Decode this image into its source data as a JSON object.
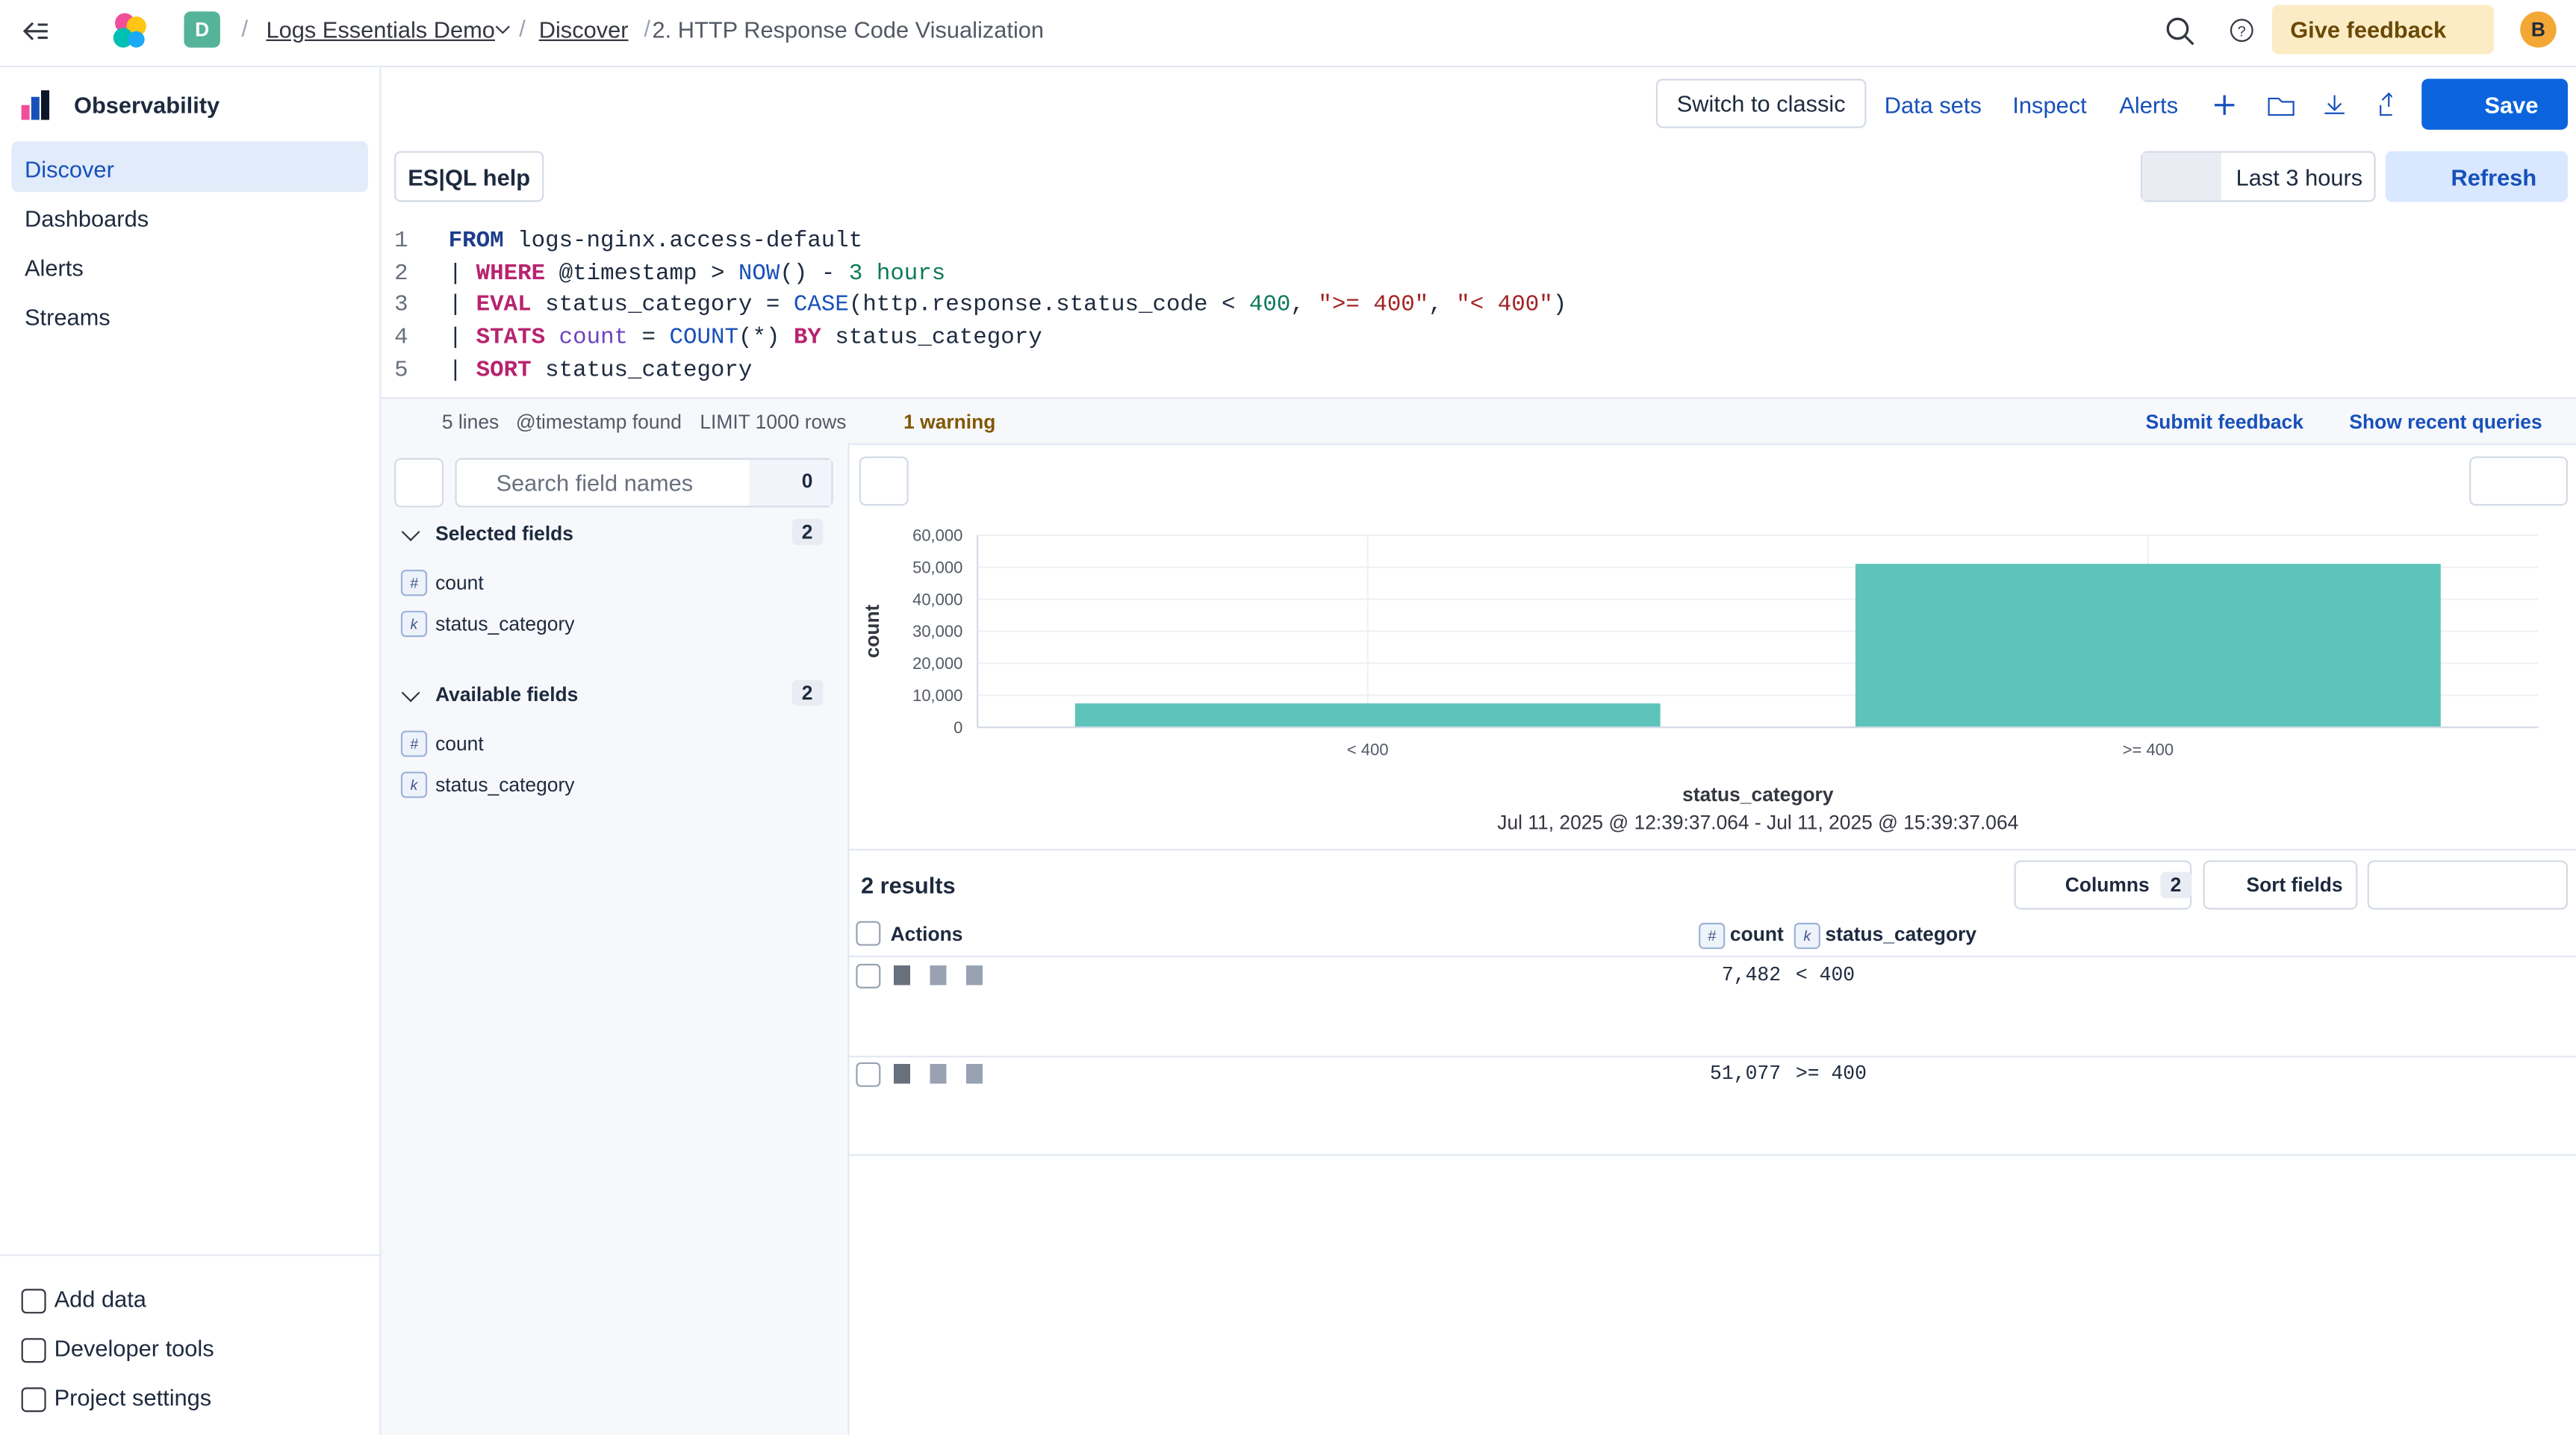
{
  "header": {
    "space_initial": "D",
    "breadcrumbs": [
      "Logs Essentials Demo",
      "Discover",
      "2. HTTP Response Code Visualization"
    ],
    "give_feedback": "Give feedback",
    "user_initial": "B"
  },
  "sidebar": {
    "title": "Observability",
    "nav": [
      "Discover",
      "Dashboards",
      "Alerts",
      "Streams"
    ],
    "footer": [
      "Add data",
      "Developer tools",
      "Project settings"
    ]
  },
  "toolbar": {
    "buttons": [
      "Switch to classic",
      "Data sets",
      "Inspect",
      "Alerts"
    ],
    "save": "Save"
  },
  "query_bar": {
    "help": "ES|QL help",
    "time_range": "Last 3 hours",
    "refresh": "Refresh"
  },
  "editor": {
    "lines": [
      {
        "number": "1",
        "tokens": [
          {
            "text": "FROM",
            "kind": "source"
          },
          {
            "text": " logs-nginx.access-default",
            "kind": "plain"
          }
        ]
      },
      {
        "number": "2",
        "tokens": [
          {
            "text": "| ",
            "kind": "plain"
          },
          {
            "text": "WHERE",
            "kind": "command"
          },
          {
            "text": " @timestamp > ",
            "kind": "plain"
          },
          {
            "text": "NOW",
            "kind": "function"
          },
          {
            "text": "() - ",
            "kind": "plain"
          },
          {
            "text": "3 hours",
            "kind": "number"
          }
        ]
      },
      {
        "number": "3",
        "tokens": [
          {
            "text": "| ",
            "kind": "plain"
          },
          {
            "text": "EVAL",
            "kind": "command"
          },
          {
            "text": " status_category = ",
            "kind": "plain"
          },
          {
            "text": "CASE",
            "kind": "function"
          },
          {
            "text": "(http.response.status_code < ",
            "kind": "plain"
          },
          {
            "text": "400",
            "kind": "number"
          },
          {
            "text": ", ",
            "kind": "plain"
          },
          {
            "text": "\">= 400\"",
            "kind": "string"
          },
          {
            "text": ", ",
            "kind": "plain"
          },
          {
            "text": "\"< 400\"",
            "kind": "string"
          },
          {
            "text": ")",
            "kind": "plain"
          }
        ]
      },
      {
        "number": "4",
        "tokens": [
          {
            "text": "| ",
            "kind": "plain"
          },
          {
            "text": "STATS",
            "kind": "command"
          },
          {
            "text": " ",
            "kind": "plain"
          },
          {
            "text": "count",
            "kind": "variable"
          },
          {
            "text": " = ",
            "kind": "plain"
          },
          {
            "text": "COUNT",
            "kind": "function"
          },
          {
            "text": "(*) ",
            "kind": "plain"
          },
          {
            "text": "BY",
            "kind": "command"
          },
          {
            "text": " status_category",
            "kind": "plain"
          }
        ]
      },
      {
        "number": "5",
        "tokens": [
          {
            "text": "| ",
            "kind": "plain"
          },
          {
            "text": "SORT",
            "kind": "command"
          },
          {
            "text": " status_category",
            "kind": "plain"
          }
        ]
      }
    ]
  },
  "status": {
    "lines": "5 lines",
    "timestamp": "@timestamp found",
    "limit": "LIMIT 1000 rows",
    "warning": "1 warning",
    "submit_feedback": "Submit feedback",
    "recent": "Show recent queries"
  },
  "fields": {
    "search_placeholder": "Search field names",
    "filter_count": "0",
    "groups": [
      {
        "title": "Selected fields",
        "count": "2",
        "items": [
          {
            "type": "#",
            "name": "count"
          },
          {
            "type": "k",
            "name": "status_category"
          }
        ]
      },
      {
        "title": "Available fields",
        "count": "2",
        "items": [
          {
            "type": "#",
            "name": "count"
          },
          {
            "type": "k",
            "name": "status_category"
          }
        ]
      }
    ]
  },
  "chart": {
    "type": "bar",
    "categories": [
      "< 400",
      ">= 400"
    ],
    "values": [
      7482,
      51077
    ],
    "color": "#5ec4bb",
    "x_label": "status_category",
    "y_label": "count",
    "subtitle": "Jul 11, 2025 @ 12:39:37.064 - Jul 11, 2025 @ 15:39:37.064",
    "ylim": [
      0,
      60000
    ],
    "yticks": [
      0,
      {
        "value": 10000,
        "label": "10,000"
      },
      {
        "value": 20000,
        "label": "20,000"
      },
      {
        "value": 30000,
        "label": "30,000"
      },
      {
        "value": 40000,
        "label": "40,000"
      },
      {
        "value": 50000,
        "label": "50,000"
      },
      {
        "value": 60000,
        "label": "60,000"
      }
    ],
    "grid": true
  },
  "results": {
    "title": "2 results",
    "columns_button": "Columns",
    "columns_count": "2",
    "sort_button": "Sort fields",
    "header": {
      "actions": "Actions",
      "columns": [
        {
          "type": "#",
          "name": "count"
        },
        {
          "type": "k",
          "name": "status_category"
        }
      ]
    },
    "rows": [
      [
        "7,482",
        "< 400"
      ],
      [
        "51,077",
        ">= 400"
      ]
    ]
  }
}
